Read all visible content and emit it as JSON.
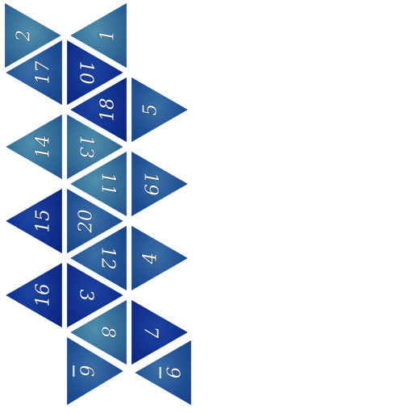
{
  "title": "",
  "colors": {
    "face_light": "#3f7aa0",
    "face_mid": "#1f4f94",
    "face_dark": "#0d2a88",
    "edge": "#ffffff",
    "numeral": "#f2f6f7",
    "background": "#ffffff"
  },
  "faces": [
    {
      "label": "2",
      "shade": "light",
      "underline": false
    },
    {
      "label": "1",
      "shade": "light",
      "underline": false
    },
    {
      "label": "17",
      "shade": "mid",
      "underline": false
    },
    {
      "label": "10",
      "shade": "dark",
      "underline": false
    },
    {
      "label": "18",
      "shade": "dark",
      "underline": false
    },
    {
      "label": "5",
      "shade": "mid",
      "underline": false
    },
    {
      "label": "14",
      "shade": "light",
      "underline": false
    },
    {
      "label": "13",
      "shade": "light",
      "underline": false
    },
    {
      "label": "11",
      "shade": "light",
      "underline": false
    },
    {
      "label": "19",
      "shade": "mid",
      "underline": false
    },
    {
      "label": "15",
      "shade": "dark",
      "underline": false
    },
    {
      "label": "20",
      "shade": "mid",
      "underline": false
    },
    {
      "label": "12",
      "shade": "mid",
      "underline": false
    },
    {
      "label": "4",
      "shade": "mid",
      "underline": false
    },
    {
      "label": "16",
      "shade": "dark",
      "underline": false
    },
    {
      "label": "3",
      "shade": "dark",
      "underline": false
    },
    {
      "label": "8",
      "shade": "light",
      "underline": false
    },
    {
      "label": "7",
      "shade": "dark",
      "underline": false
    },
    {
      "label": "6",
      "shade": "mid",
      "underline": true
    },
    {
      "label": "9",
      "shade": "mid",
      "underline": true
    }
  ]
}
